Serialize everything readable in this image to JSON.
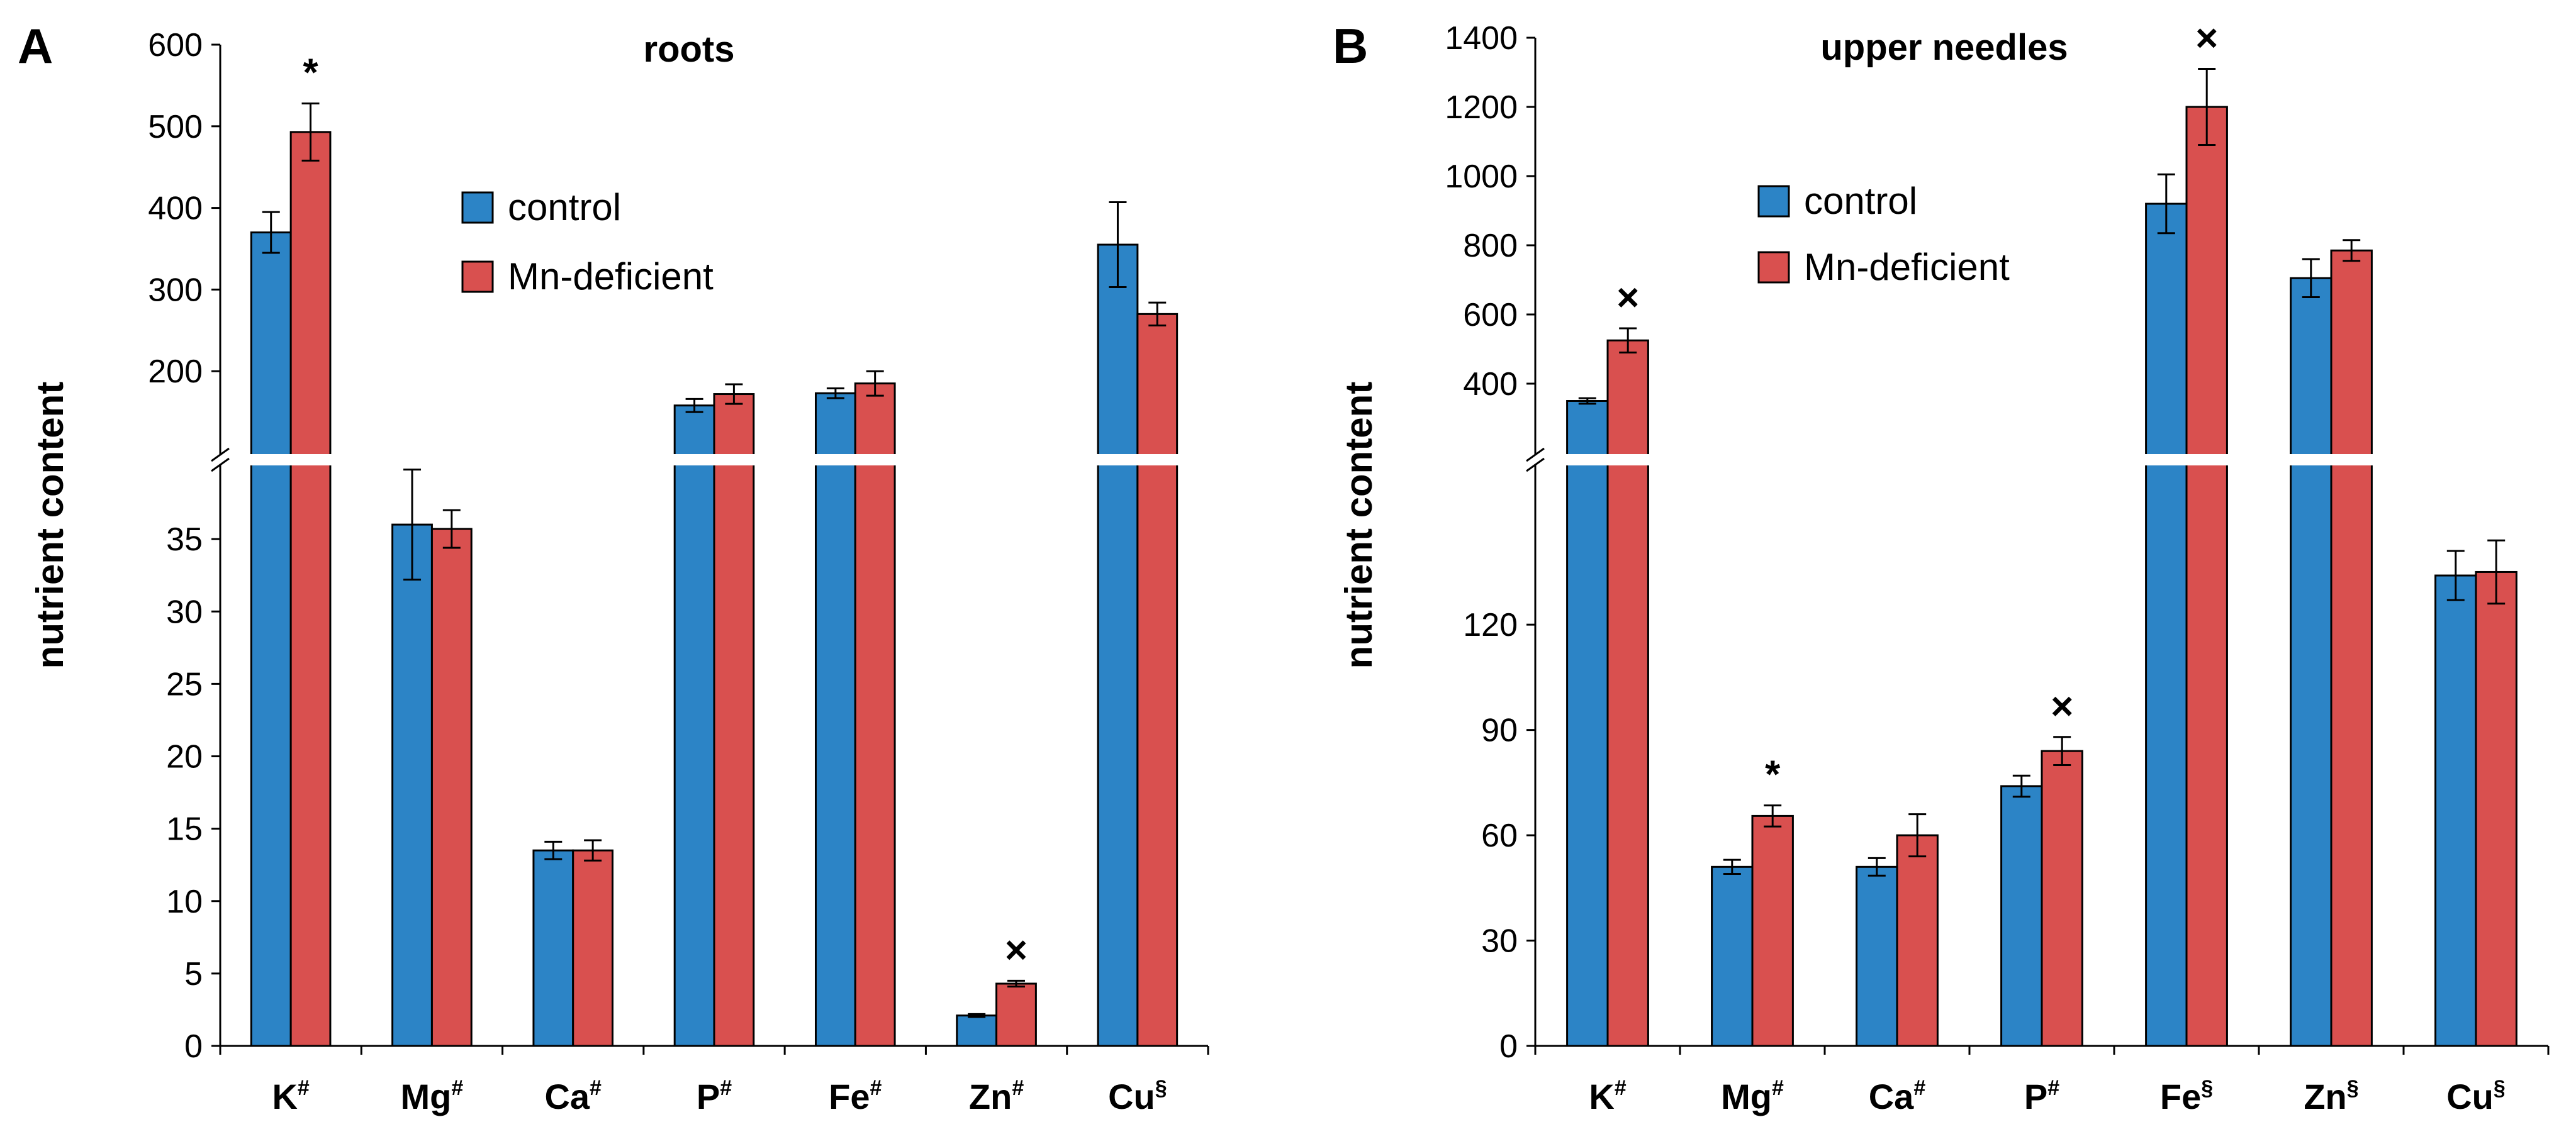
{
  "colors": {
    "control": "#2c84c6",
    "mn_deficient": "#d9504f",
    "axis": "#000000"
  },
  "legend": {
    "control": "control",
    "mn_deficient": "Mn-deficient"
  },
  "chart_data": [
    {
      "panel_label": "A",
      "type": "bar",
      "title": "roots",
      "ylabel": "nutrient content",
      "categories": [
        "K",
        "Mg",
        "Ca",
        "P",
        "Fe",
        "Zn",
        "Cu"
      ],
      "category_marks": [
        "#",
        "#",
        "#",
        "#",
        "#",
        "#",
        "§"
      ],
      "broken_axis": true,
      "ylim_lower": [
        0,
        40
      ],
      "ylim_upper": [
        100,
        600
      ],
      "yticks_lower": [
        "0",
        "5",
        "10",
        "15",
        "20",
        "25",
        "30",
        "35"
      ],
      "yticks_upper": [
        "200",
        "300",
        "400",
        "500",
        "600"
      ],
      "series": [
        {
          "name": "control",
          "values": [
            370,
            36,
            13.5,
            158,
            173,
            2.1,
            355
          ],
          "errors": [
            25,
            3.8,
            0.6,
            8,
            6,
            0.1,
            52
          ]
        },
        {
          "name": "Mn-deficient",
          "values": [
            493,
            35.7,
            13.5,
            172,
            185,
            4.3,
            270
          ],
          "errors": [
            35,
            1.3,
            0.7,
            12,
            15,
            0.2,
            14
          ]
        }
      ],
      "annotations": [
        {
          "category": "K",
          "text": "*"
        },
        {
          "category": "Zn",
          "text": "×"
        }
      ]
    },
    {
      "panel_label": "B",
      "type": "bar",
      "title": "upper needles",
      "ylabel": "nutrient content",
      "categories": [
        "K",
        "Mg",
        "Ca",
        "P",
        "Fe",
        "Zn",
        "Cu"
      ],
      "category_marks": [
        "#",
        "#",
        "#",
        "#",
        "§",
        "§",
        "§"
      ],
      "broken_axis": true,
      "ylim_lower": [
        0,
        165
      ],
      "ylim_upper": [
        200,
        1400
      ],
      "yticks_lower": [
        "0",
        "30",
        "60",
        "90",
        "120"
      ],
      "yticks_upper": [
        "400",
        "600",
        "800",
        "1000",
        "1200",
        "1400"
      ],
      "series": [
        {
          "name": "control",
          "values": [
            350,
            51,
            51,
            74,
            920,
            705,
            134
          ],
          "errors": [
            8,
            2,
            2.5,
            3,
            85,
            55,
            7
          ]
        },
        {
          "name": "Mn-deficient",
          "values": [
            525,
            65.5,
            60,
            84,
            1200,
            785,
            135
          ],
          "errors": [
            35,
            3,
            6,
            4,
            110,
            30,
            9
          ]
        }
      ],
      "annotations": [
        {
          "category": "K",
          "text": "×"
        },
        {
          "category": "Mg",
          "text": "*"
        },
        {
          "category": "P",
          "text": "×"
        },
        {
          "category": "Fe",
          "text": "×"
        }
      ]
    }
  ]
}
